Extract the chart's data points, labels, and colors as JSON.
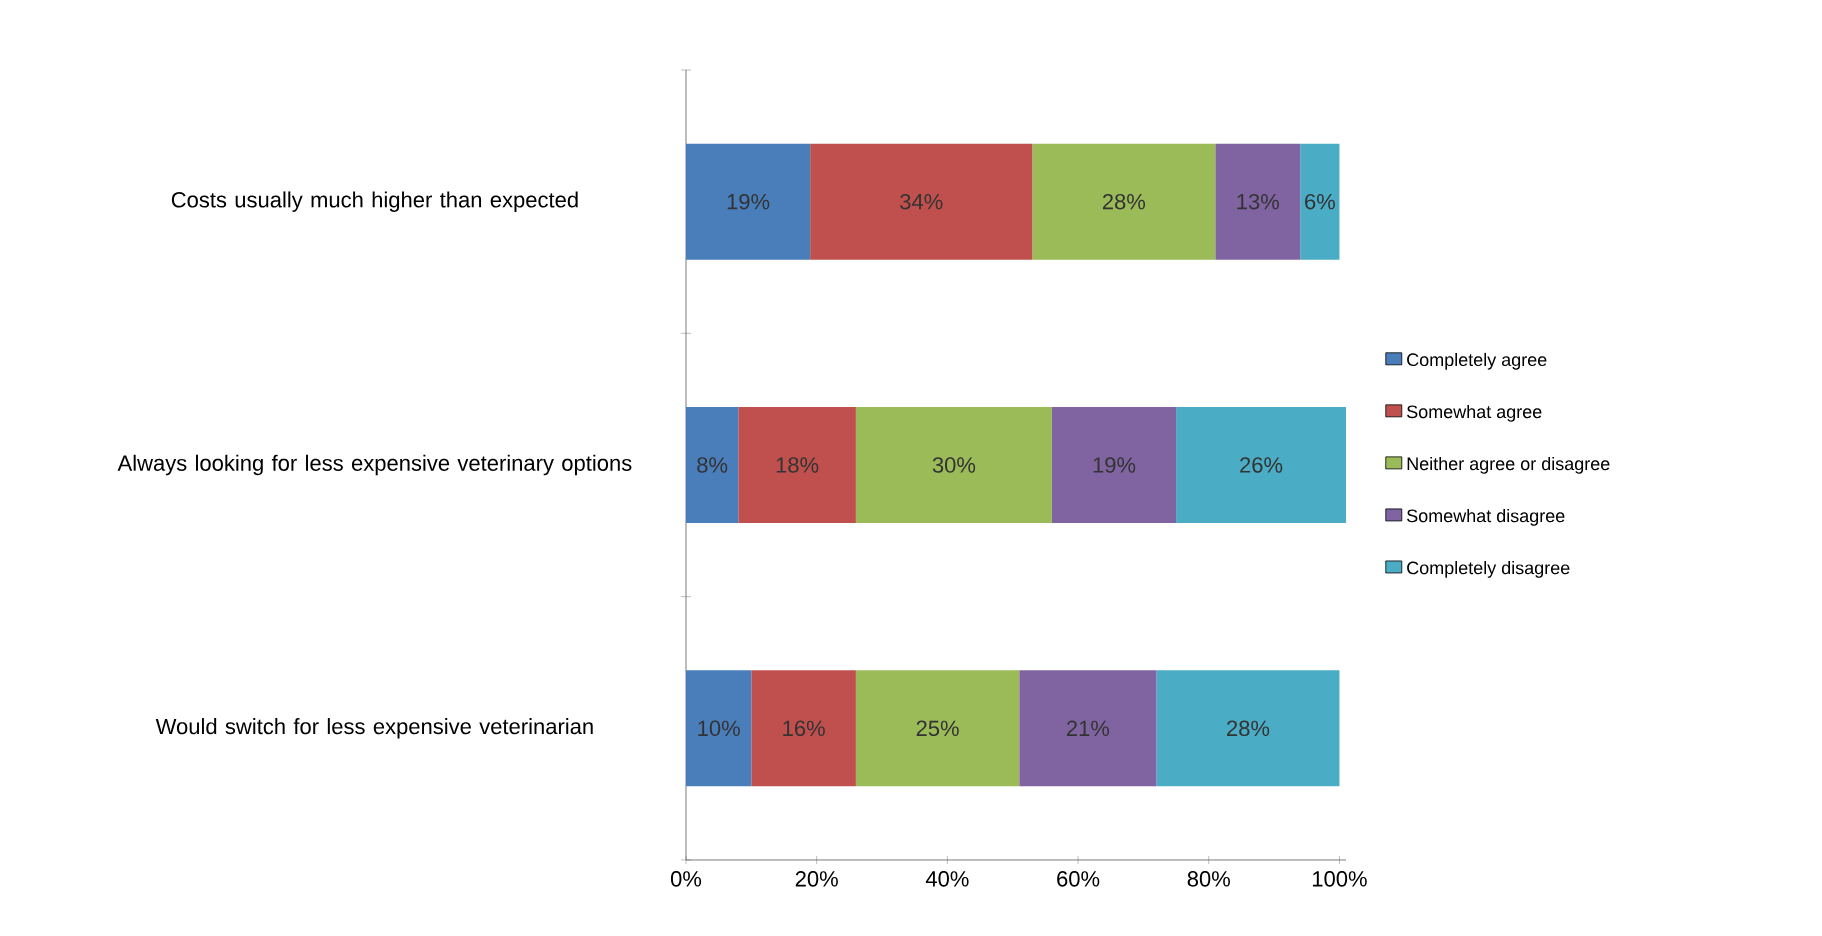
{
  "chart_data": {
    "type": "bar",
    "orientation": "horizontal",
    "stacked": true,
    "legend": "right",
    "categories": [
      "Costs usually much higher than expected",
      "Always looking for less expensive veterinary options",
      "Would switch for less expensive veterinarian"
    ],
    "xlim": [
      0,
      101
    ],
    "xticks": [
      {
        "value": 0,
        "label": "0%"
      },
      {
        "value": 20,
        "label": "20%"
      },
      {
        "value": 40,
        "label": "40%"
      },
      {
        "value": 60,
        "label": "60%"
      },
      {
        "value": 80,
        "label": "80%"
      },
      {
        "value": 100,
        "label": "100%"
      }
    ],
    "series": [
      {
        "name": "Completely agree",
        "color": "#4a7ebb",
        "values": [
          19,
          8,
          10
        ],
        "value_labels": [
          "19%",
          "8%",
          "10%"
        ]
      },
      {
        "name": "Somewhat agree",
        "color": "#c0504d",
        "values": [
          34,
          18,
          16
        ],
        "value_labels": [
          "34%",
          "18%",
          "16%"
        ]
      },
      {
        "name": "Neither agree or disagree",
        "color": "#9bbb59",
        "values": [
          28,
          30,
          25
        ],
        "value_labels": [
          "28%",
          "30%",
          "25%"
        ]
      },
      {
        "name": "Somewhat disagree",
        "color": "#8064a2",
        "values": [
          13,
          19,
          21
        ],
        "value_labels": [
          "13%",
          "19%",
          "21%"
        ]
      },
      {
        "name": "Completely disagree",
        "color": "#4bacc6",
        "values": [
          6,
          26,
          28
        ],
        "value_labels": [
          "6%",
          "26%",
          "28%"
        ]
      }
    ]
  }
}
